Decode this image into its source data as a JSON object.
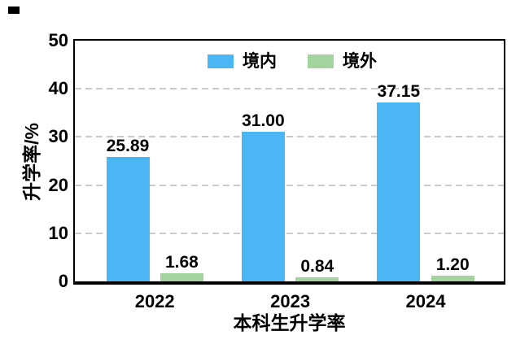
{
  "chart_data": {
    "type": "bar",
    "title": "",
    "xlabel": "本科生升学率",
    "ylabel": "升学率/%",
    "categories": [
      "2022",
      "2023",
      "2024"
    ],
    "series": [
      {
        "name": "境内",
        "color": "#4ab6f3",
        "values": [
          25.89,
          31.0,
          37.15
        ],
        "labels": [
          "25.89",
          "31.00",
          "37.15"
        ]
      },
      {
        "name": "境外",
        "color": "#a3d49d",
        "values": [
          1.68,
          0.84,
          1.2
        ],
        "labels": [
          "1.68",
          "0.84",
          "1.20"
        ]
      }
    ],
    "ylim": [
      0,
      50
    ],
    "yticks": [
      0,
      10,
      20,
      30,
      40,
      50
    ],
    "gridlines": [
      10,
      20,
      30,
      40
    ],
    "grid_style": "dashed horizontal",
    "legend_position": "top-center-inside",
    "colors": {
      "axis": "#000000",
      "gridline": "#cbcbcb",
      "text": "#000000",
      "background": "#ffffff"
    }
  }
}
